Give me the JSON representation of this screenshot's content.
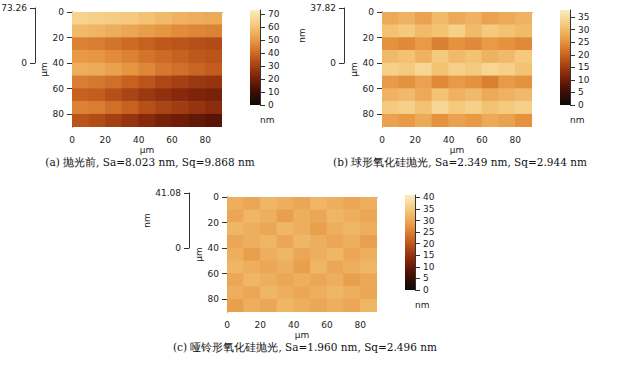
{
  "chart_data": [
    {
      "type": "heatmap",
      "title": "(a) 抛光前, Sa=8.023 nm, Sq=9.868 nm",
      "xlabel": "μm",
      "ylabel": "μm",
      "zlabel": "nm",
      "x": [
        5,
        15,
        25,
        35,
        45,
        55,
        65,
        75,
        85
      ],
      "y": [
        5,
        15,
        25,
        35,
        45,
        55,
        65,
        75,
        85
      ],
      "xlim": [
        0,
        90
      ],
      "xticks": [
        0,
        20,
        40,
        60,
        80
      ],
      "ylim": [
        0,
        90
      ],
      "yticks": [
        0,
        20,
        40,
        60,
        80
      ],
      "zlim": [
        0,
        73.26
      ],
      "zticks": [
        0,
        73.26
      ],
      "z": [
        [
          65,
          64,
          63,
          62,
          60,
          58,
          56,
          55,
          54
        ],
        [
          58,
          57,
          55,
          53,
          51,
          49,
          47,
          46,
          45
        ],
        [
          45,
          44,
          42,
          40,
          38,
          36,
          35,
          34,
          33
        ],
        [
          50,
          49,
          47,
          45,
          42,
          40,
          38,
          36,
          35
        ],
        [
          55,
          54,
          52,
          49,
          46,
          43,
          41,
          39,
          37
        ],
        [
          44,
          43,
          41,
          38,
          35,
          32,
          30,
          28,
          27
        ],
        [
          38,
          37,
          34,
          31,
          28,
          26,
          24,
          22,
          21
        ],
        [
          45,
          44,
          41,
          38,
          34,
          31,
          29,
          27,
          25
        ],
        [
          35,
          33,
          30,
          27,
          24,
          21,
          19,
          17,
          15
        ]
      ],
      "colorbar": {
        "range": [
          0,
          73.26
        ],
        "ticks": [
          0,
          10,
          20,
          30,
          40,
          50,
          60,
          70
        ],
        "label": "nm"
      }
    },
    {
      "type": "heatmap",
      "title": "(b) 球形氧化硅抛光, Sa=2.349 nm, Sq=2.944 nm",
      "xlabel": "μm",
      "ylabel": "μm",
      "zlabel": "nm",
      "x": [
        5,
        15,
        25,
        35,
        45,
        55,
        65,
        75,
        85
      ],
      "y": [
        5,
        15,
        25,
        35,
        45,
        55,
        65,
        75,
        85
      ],
      "xlim": [
        0,
        90
      ],
      "xticks": [
        0,
        20,
        40,
        60,
        80
      ],
      "ylim": [
        0,
        90
      ],
      "yticks": [
        0,
        20,
        40,
        60,
        80
      ],
      "zlim": [
        0,
        37.82
      ],
      "zticks": [
        0,
        37.82
      ],
      "z": [
        [
          28,
          29,
          27,
          30,
          28,
          29,
          27,
          28,
          29
        ],
        [
          31,
          32,
          30,
          31,
          33,
          30,
          32,
          31,
          30
        ],
        [
          25,
          24,
          26,
          23,
          25,
          24,
          26,
          25,
          24
        ],
        [
          30,
          31,
          29,
          32,
          30,
          31,
          29,
          30,
          32
        ],
        [
          33,
          32,
          34,
          31,
          33,
          32,
          34,
          33,
          31
        ],
        [
          26,
          25,
          27,
          24,
          26,
          25,
          23,
          26,
          25
        ],
        [
          29,
          30,
          28,
          31,
          29,
          30,
          28,
          29,
          30
        ],
        [
          32,
          33,
          31,
          34,
          32,
          33,
          31,
          32,
          33
        ],
        [
          27,
          26,
          28,
          25,
          27,
          26,
          28,
          27,
          25
        ]
      ],
      "colorbar": {
        "range": [
          0,
          37.82
        ],
        "ticks": [
          0,
          5,
          10,
          15,
          20,
          25,
          30,
          35
        ],
        "label": "nm"
      }
    },
    {
      "type": "heatmap",
      "title": "(c) 哑铃形氧化硅抛光, Sa=1.960 nm, Sq=2.496 nm",
      "xlabel": "μm",
      "ylabel": "μm",
      "zlabel": "nm",
      "x": [
        5,
        15,
        25,
        35,
        45,
        55,
        65,
        75,
        85
      ],
      "y": [
        5,
        15,
        25,
        35,
        45,
        55,
        65,
        75,
        85
      ],
      "xlim": [
        0,
        90
      ],
      "xticks": [
        0,
        20,
        40,
        60,
        80
      ],
      "ylim": [
        0,
        90
      ],
      "yticks": [
        0,
        20,
        40,
        60,
        80
      ],
      "zlim": [
        0,
        41.08
      ],
      "zticks": [
        0,
        41.08
      ],
      "z": [
        [
          31,
          30,
          32,
          31,
          30,
          32,
          31,
          30,
          31
        ],
        [
          30,
          32,
          31,
          29,
          31,
          30,
          32,
          31,
          30
        ],
        [
          32,
          31,
          30,
          32,
          31,
          29,
          31,
          32,
          31
        ],
        [
          30,
          31,
          32,
          30,
          32,
          31,
          30,
          31,
          29
        ],
        [
          31,
          29,
          31,
          32,
          30,
          31,
          32,
          30,
          31
        ],
        [
          32,
          31,
          30,
          31,
          29,
          32,
          30,
          31,
          32
        ],
        [
          30,
          32,
          31,
          30,
          31,
          30,
          31,
          29,
          30
        ],
        [
          31,
          30,
          32,
          31,
          30,
          31,
          32,
          31,
          30
        ],
        [
          29,
          31,
          30,
          32,
          31,
          30,
          31,
          30,
          32
        ]
      ],
      "colorbar": {
        "range": [
          0,
          41.08
        ],
        "ticks": [
          0,
          5,
          10,
          15,
          20,
          25,
          30,
          35,
          40
        ],
        "label": "nm"
      }
    }
  ]
}
